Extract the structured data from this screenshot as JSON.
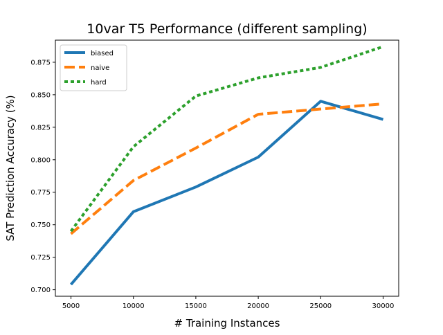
{
  "chart_data": {
    "type": "line",
    "title": "10var T5 Performance (different sampling)",
    "xlabel": "# Training Instances",
    "ylabel": "SAT Prediction Accuracy (%)",
    "x": [
      5000,
      10000,
      15000,
      20000,
      25000,
      30000
    ],
    "x_tick_labels": [
      "5000",
      "10000",
      "15000",
      "20000",
      "25000",
      "30000"
    ],
    "y_ticks": [
      0.7,
      0.725,
      0.75,
      0.775,
      0.8,
      0.825,
      0.85,
      0.875
    ],
    "y_tick_labels": [
      "0.700",
      "0.725",
      "0.750",
      "0.775",
      "0.800",
      "0.825",
      "0.850",
      "0.875"
    ],
    "xlim": [
      3750,
      31250
    ],
    "ylim": [
      0.695,
      0.892
    ],
    "grid": false,
    "legend_position": "upper-left",
    "series": [
      {
        "name": "biased",
        "style": "solid",
        "color": "#1f77b4",
        "values": [
          0.704,
          0.76,
          0.779,
          0.802,
          0.845,
          0.831
        ]
      },
      {
        "name": "naive",
        "style": "dashed",
        "color": "#ff7f0e",
        "values": [
          0.743,
          0.784,
          0.809,
          0.835,
          0.839,
          0.843
        ]
      },
      {
        "name": "hard",
        "style": "dotted",
        "color": "#2ca02c",
        "values": [
          0.745,
          0.81,
          0.849,
          0.863,
          0.871,
          0.887
        ]
      }
    ]
  }
}
